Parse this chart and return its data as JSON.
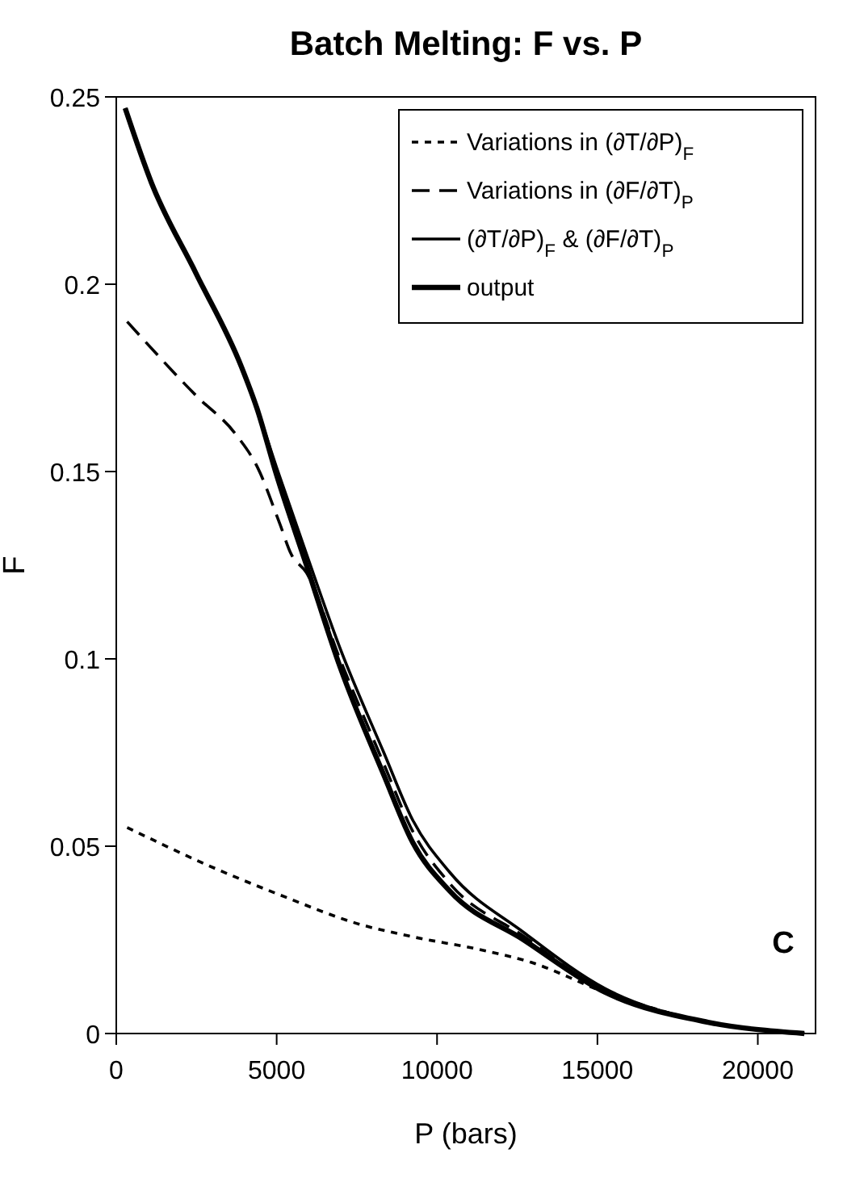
{
  "chart_data": {
    "type": "line",
    "title": "Batch Melting: F vs. P",
    "xlabel": "P (bars)",
    "ylabel": "F",
    "x": [
      340,
      2830,
      5100,
      7650,
      9140,
      11550,
      12930,
      15240,
      18450,
      21450
    ],
    "series": [
      {
        "name": "Variations in (∂T/∂P)$_{F}$",
        "color": "#000000",
        "line_style": "dotted",
        "values": [
          0.055,
          0.045,
          0.037,
          0.029,
          0.026,
          0.022,
          0.019,
          0.011,
          0.003,
          0
        ]
      },
      {
        "name": "Variations in (∂F/∂T)$_{P}$",
        "color": "#000000",
        "line_style": "dashed",
        "x": [
          340,
          2520,
          3720,
          4410,
          5100,
          5450,
          5930,
          6970,
          8340,
          9240,
          10400,
          12700,
          15240,
          18450,
          21450
        ],
        "values": [
          0.19,
          0.17,
          0.16,
          0.151,
          0.136,
          0.128,
          0.123,
          0.1,
          0.072,
          0.054,
          0.04,
          0.026,
          0.011,
          0.003,
          0
        ]
      },
      {
        "name": "(∂T/∂P)$_{F}$ & (∂F/∂T)$_{P}$",
        "color": "#000000",
        "line_style": "solid",
        "x": [
          276,
          1100,
          2480,
          3900,
          4380,
          5000,
          5930,
          6970,
          8340,
          9240,
          10400,
          12700,
          15240,
          18450,
          21450
        ],
        "values": [
          0.247,
          0.227,
          0.203,
          0.178,
          0.167,
          0.151,
          0.128,
          0.103,
          0.075,
          0.057,
          0.043,
          0.027,
          0.012,
          0.003,
          0
        ]
      },
      {
        "name": "output",
        "color": "#000000",
        "line_style": "solid",
        "x": [
          276,
          1100,
          2480,
          3900,
          4380,
          5000,
          5930,
          6970,
          8340,
          9240,
          10400,
          12700,
          15240,
          18450,
          21450
        ],
        "values": [
          0.247,
          0.227,
          0.203,
          0.178,
          0.167,
          0.149,
          0.125,
          0.098,
          0.069,
          0.051,
          0.038,
          0.025,
          0.011,
          0.003,
          0
        ]
      }
    ],
    "annotations": [
      "C"
    ],
    "xlim": [
      0,
      21800
    ],
    "ylim": [
      0,
      0.25
    ],
    "xticks": [
      0,
      5000,
      10000,
      15000,
      20000
    ],
    "yticks": [
      0,
      0.05,
      0.1,
      0.15,
      0.2,
      0.25
    ],
    "grid": false,
    "legend": "top right",
    "marker": "none"
  }
}
